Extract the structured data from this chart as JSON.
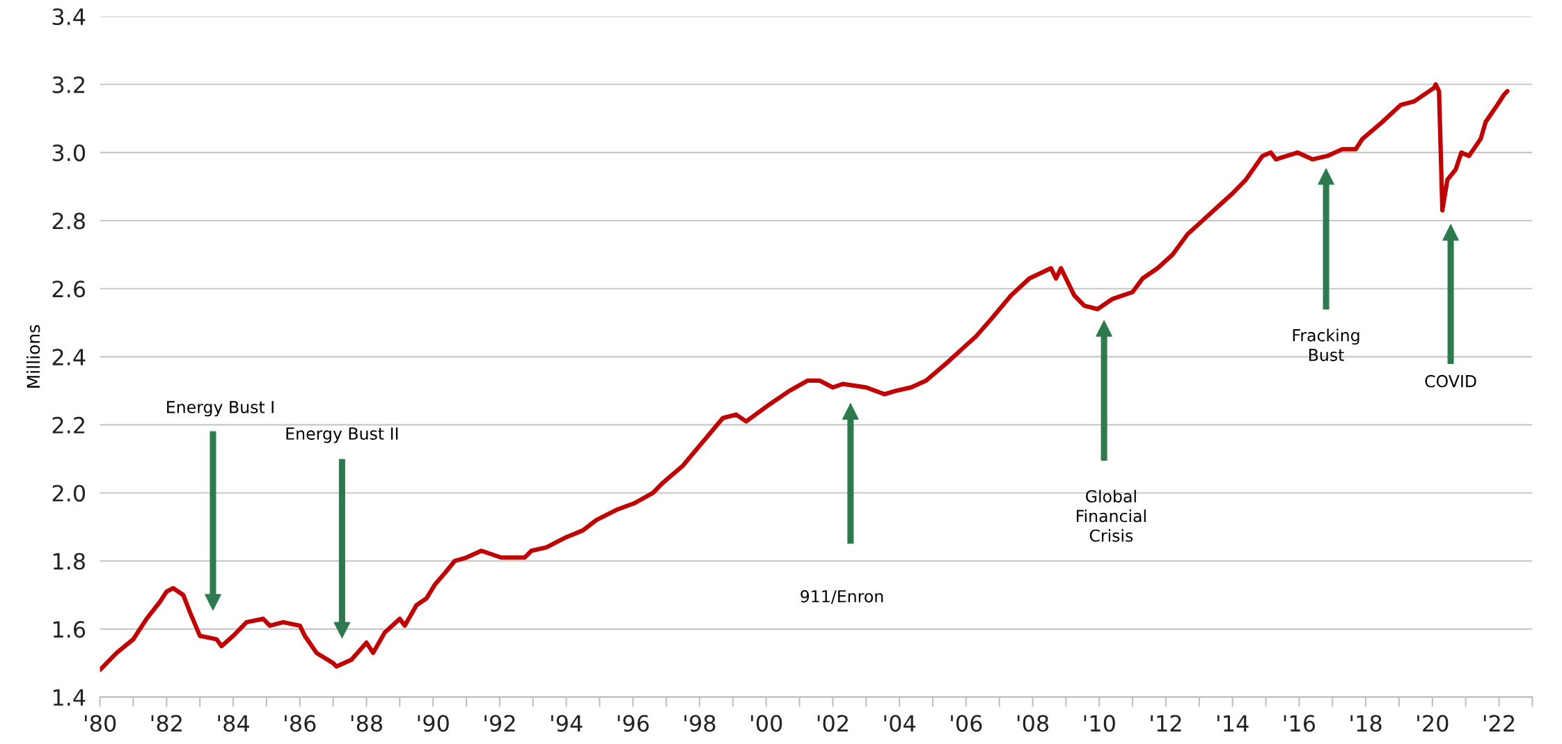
{
  "chart_data": {
    "type": "line",
    "ylabel": "Millions",
    "x": [
      1980.0,
      1980.5,
      1981.0,
      1981.4,
      1981.8,
      1982.0,
      1982.2,
      1982.5,
      1982.7,
      1983.0,
      1983.5,
      1983.65,
      1984.0,
      1984.4,
      1984.9,
      1985.1,
      1985.5,
      1986.0,
      1986.15,
      1986.5,
      1987.0,
      1987.1,
      1987.55,
      1988.0,
      1988.2,
      1988.55,
      1989.0,
      1989.15,
      1989.5,
      1989.8,
      1990.05,
      1990.4,
      1990.65,
      1991.0,
      1991.45,
      1992.05,
      1992.75,
      1992.95,
      1993.4,
      1994.0,
      1994.5,
      1994.9,
      1995.5,
      1996.05,
      1996.6,
      1996.9,
      1997.5,
      1998.1,
      1998.7,
      1999.1,
      1999.4,
      2000.1,
      2000.7,
      2001.25,
      2001.6,
      2002.0,
      2002.3,
      2003.0,
      2003.55,
      2003.9,
      2004.35,
      2004.8,
      2005.4,
      2005.85,
      2006.3,
      2006.75,
      2007.35,
      2007.9,
      2008.55,
      2008.7,
      2008.85,
      2009.25,
      2009.55,
      2009.95,
      2010.4,
      2011.0,
      2011.3,
      2011.75,
      2012.2,
      2012.65,
      2013.1,
      2013.55,
      2014.0,
      2014.4,
      2014.9,
      2015.15,
      2015.3,
      2015.95,
      2016.4,
      2016.85,
      2017.3,
      2017.7,
      2017.9,
      2018.5,
      2019.05,
      2019.45,
      2020.05,
      2020.1,
      2020.2,
      2020.3,
      2020.45,
      2020.7,
      2020.87,
      2021.1,
      2021.45,
      2021.6,
      2021.95,
      2022.15,
      2022.25
    ],
    "series": [
      {
        "color": "#c00000",
        "values": [
          1.48,
          1.53,
          1.57,
          1.63,
          1.68,
          1.71,
          1.72,
          1.7,
          1.65,
          1.58,
          1.57,
          1.55,
          1.58,
          1.62,
          1.63,
          1.61,
          1.62,
          1.61,
          1.58,
          1.53,
          1.5,
          1.49,
          1.51,
          1.56,
          1.53,
          1.59,
          1.63,
          1.61,
          1.67,
          1.69,
          1.73,
          1.77,
          1.8,
          1.81,
          1.83,
          1.81,
          1.81,
          1.83,
          1.84,
          1.87,
          1.89,
          1.92,
          1.95,
          1.97,
          2.0,
          2.03,
          2.08,
          2.15,
          2.22,
          2.23,
          2.21,
          2.26,
          2.3,
          2.33,
          2.33,
          2.31,
          2.32,
          2.31,
          2.29,
          2.3,
          2.31,
          2.33,
          2.38,
          2.42,
          2.46,
          2.51,
          2.58,
          2.63,
          2.66,
          2.63,
          2.66,
          2.58,
          2.55,
          2.54,
          2.57,
          2.59,
          2.63,
          2.66,
          2.7,
          2.76,
          2.8,
          2.84,
          2.88,
          2.92,
          2.99,
          3.0,
          2.98,
          3.0,
          2.98,
          2.99,
          3.01,
          3.01,
          3.04,
          3.09,
          3.14,
          3.15,
          3.19,
          3.2,
          3.18,
          2.83,
          2.92,
          2.95,
          3.0,
          2.99,
          3.04,
          3.09,
          3.14,
          3.17,
          3.18
        ]
      }
    ],
    "xlim": [
      1980,
      2023
    ],
    "xticks": [
      {
        "value": 1980,
        "label": "'80"
      },
      {
        "value": 1981,
        "label": null
      },
      {
        "value": 1982,
        "label": "'82"
      },
      {
        "value": 1983,
        "label": null
      },
      {
        "value": 1984,
        "label": "'84"
      },
      {
        "value": 1985,
        "label": null
      },
      {
        "value": 1986,
        "label": "'86"
      },
      {
        "value": 1987,
        "label": null
      },
      {
        "value": 1988,
        "label": "'88"
      },
      {
        "value": 1989,
        "label": null
      },
      {
        "value": 1990,
        "label": "'90"
      },
      {
        "value": 1991,
        "label": null
      },
      {
        "value": 1992,
        "label": "'92"
      },
      {
        "value": 1993,
        "label": null
      },
      {
        "value": 1994,
        "label": "'94"
      },
      {
        "value": 1995,
        "label": null
      },
      {
        "value": 1996,
        "label": "'96"
      },
      {
        "value": 1997,
        "label": null
      },
      {
        "value": 1998,
        "label": "'98"
      },
      {
        "value": 1999,
        "label": null
      },
      {
        "value": 2000,
        "label": "'00"
      },
      {
        "value": 2001,
        "label": null
      },
      {
        "value": 2002,
        "label": "'02"
      },
      {
        "value": 2003,
        "label": null
      },
      {
        "value": 2004,
        "label": "'04"
      },
      {
        "value": 2005,
        "label": null
      },
      {
        "value": 2006,
        "label": "'06"
      },
      {
        "value": 2007,
        "label": null
      },
      {
        "value": 2008,
        "label": "'08"
      },
      {
        "value": 2009,
        "label": null
      },
      {
        "value": 2010,
        "label": "'10"
      },
      {
        "value": 2011,
        "label": null
      },
      {
        "value": 2012,
        "label": "'12"
      },
      {
        "value": 2013,
        "label": null
      },
      {
        "value": 2014,
        "label": "'14"
      },
      {
        "value": 2015,
        "label": null
      },
      {
        "value": 2016,
        "label": "'16"
      },
      {
        "value": 2017,
        "label": null
      },
      {
        "value": 2018,
        "label": "'18"
      },
      {
        "value": 2019,
        "label": null
      },
      {
        "value": 2020,
        "label": "'20"
      },
      {
        "value": 2021,
        "label": null
      },
      {
        "value": 2022,
        "label": "'22"
      },
      {
        "value": 2023,
        "label": null
      }
    ],
    "ylim": [
      1.4,
      3.4
    ],
    "yticks": [
      1.4,
      1.6,
      1.8,
      {
        "value": 2,
        "label": "2.0"
      },
      2.2,
      2.4,
      2.6,
      2.8,
      {
        "value": 3,
        "label": "3.0"
      },
      3.2,
      3.4
    ],
    "grid": "y",
    "marker": "none",
    "line_style": "solid",
    "annotations": [
      "Energy Bust I",
      "Energy Bust II",
      "911/Enron",
      "Global\nFinancial\nCrisis",
      "Fracking\nBust",
      "COVID"
    ]
  }
}
